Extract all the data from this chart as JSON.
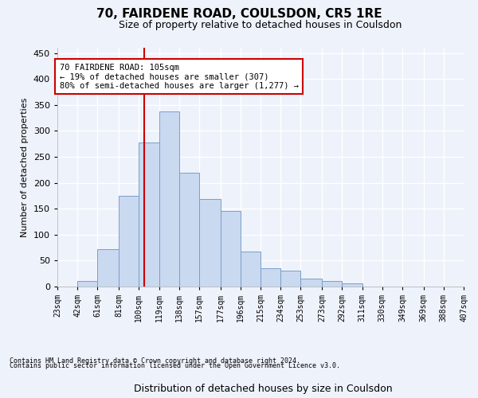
{
  "title1": "70, FAIRDENE ROAD, COULSDON, CR5 1RE",
  "title2": "Size of property relative to detached houses in Coulsdon",
  "xlabel": "Distribution of detached houses by size in Coulsdon",
  "ylabel": "Number of detached properties",
  "bar_values": [
    0,
    11,
    72,
    175,
    277,
    338,
    220,
    168,
    145,
    68,
    36,
    30,
    15,
    10,
    6,
    0,
    0,
    0,
    0,
    0
  ],
  "bin_edges": [
    23,
    42,
    61,
    81,
    100,
    119,
    138,
    157,
    177,
    196,
    215,
    234,
    253,
    273,
    292,
    311,
    330,
    349,
    369,
    388,
    407
  ],
  "tick_labels": [
    "23sqm",
    "42sqm",
    "61sqm",
    "81sqm",
    "100sqm",
    "119sqm",
    "138sqm",
    "157sqm",
    "177sqm",
    "196sqm",
    "215sqm",
    "234sqm",
    "253sqm",
    "273sqm",
    "292sqm",
    "311sqm",
    "330sqm",
    "349sqm",
    "369sqm",
    "388sqm",
    "407sqm"
  ],
  "bar_color": "#c9d9f0",
  "bar_edge_color": "#7a9fc9",
  "vline_x": 105,
  "vline_color": "#cc0000",
  "annotation_text": "70 FAIRDENE ROAD: 105sqm\n← 19% of detached houses are smaller (307)\n80% of semi-detached houses are larger (1,277) →",
  "annotation_box_color": "#ffffff",
  "annotation_box_edge": "#cc0000",
  "background_color": "#eef2fb",
  "grid_color": "#ffffff",
  "footer1": "Contains HM Land Registry data © Crown copyright and database right 2024.",
  "footer2": "Contains public sector information licensed under the Open Government Licence v3.0.",
  "ylim": [
    0,
    460
  ],
  "yticks": [
    0,
    50,
    100,
    150,
    200,
    250,
    300,
    350,
    400,
    450
  ],
  "title1_fontsize": 11,
  "title2_fontsize": 9,
  "ylabel_fontsize": 8,
  "xlabel_fontsize": 9,
  "tick_fontsize": 7,
  "ytick_fontsize": 8,
  "footer_fontsize": 6
}
